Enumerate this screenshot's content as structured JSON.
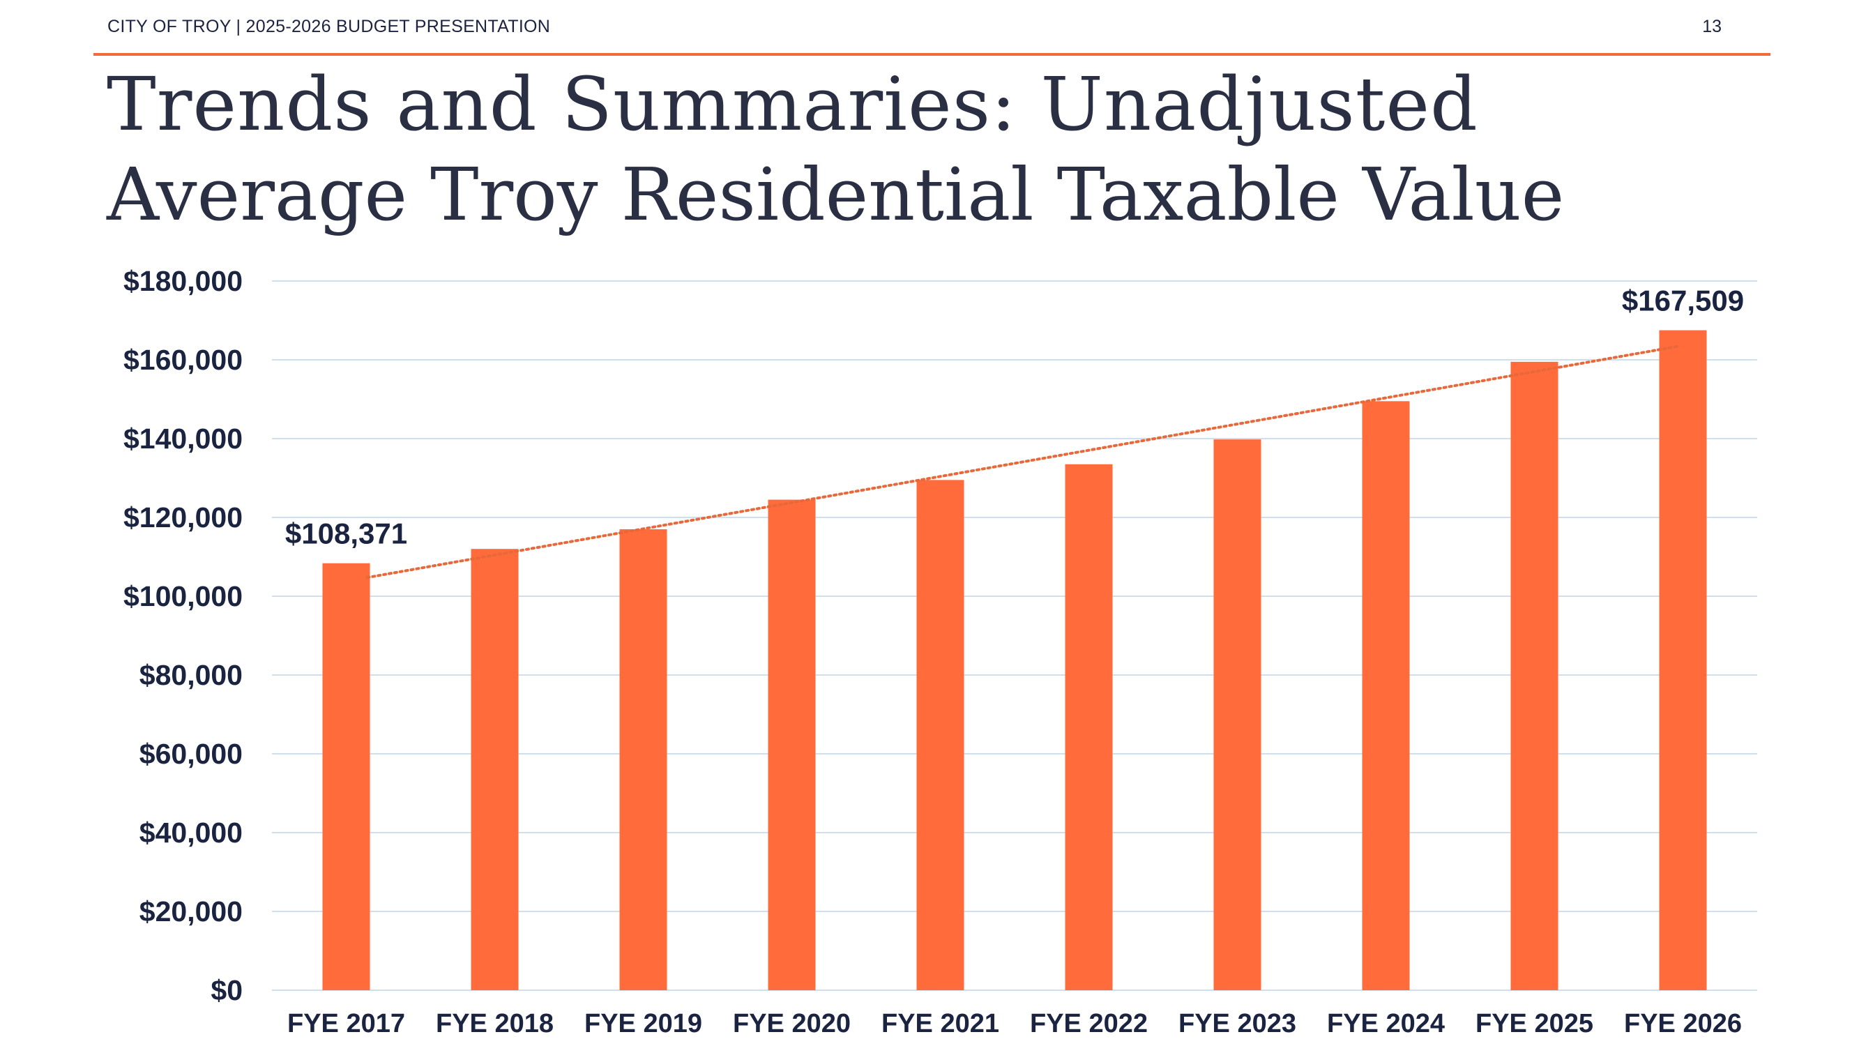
{
  "header": {
    "left_text": "CITY OF TROY | 2025-2026 BUDGET PRESENTATION",
    "page_number": "13"
  },
  "slide": {
    "title": "Trends and Summaries: Unadjusted",
    "subtitle": "Average Troy Residential Taxable Value"
  },
  "colors": {
    "accent": "#f26b3a",
    "bar": "#ff6b3a",
    "text_dark": "#1a2340",
    "gridline": "#cfdfee",
    "trendline": "#e8683a"
  },
  "chart_data": {
    "type": "bar",
    "categories": [
      "FYE 2017",
      "FYE 2018",
      "FYE 2019",
      "FYE 2020",
      "FYE 2021",
      "FYE 2022",
      "FYE 2023",
      "FYE 2024",
      "FYE 2025",
      "FYE 2026"
    ],
    "series": [
      {
        "values": [
          108371,
          112000,
          117000,
          124500,
          129500,
          133500,
          139800,
          149500,
          159500,
          167509
        ]
      }
    ],
    "data_labels": [
      {
        "category": "FYE 2017",
        "text": "$108,371"
      },
      {
        "category": "FYE 2026",
        "text": "$167,509"
      }
    ],
    "ylim": [
      0,
      180000
    ],
    "yticks": [
      0,
      20000,
      40000,
      60000,
      80000,
      100000,
      120000,
      140000,
      160000,
      180000
    ],
    "ytick_labels": [
      "$0",
      "$20,000",
      "$40,000",
      "$60,000",
      "$80,000",
      "$100,000",
      "$120,000",
      "$140,000",
      "$160,000",
      "$180,000"
    ],
    "trendline": "linear, dotted",
    "grid": true,
    "xlabel": "",
    "ylabel": ""
  }
}
